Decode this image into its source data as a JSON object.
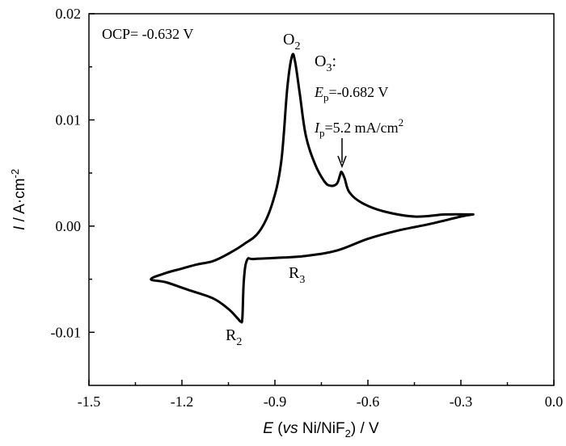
{
  "chart_data": {
    "type": "line",
    "title": "",
    "xlabel": {
      "var": "E",
      "open": " (",
      "vs": "vs",
      "ref": " Ni/NiF",
      "ref_sub": "2",
      "close": ") / V"
    },
    "ylabel": {
      "var": "I",
      "unit": " / A·cm",
      "unit_sup": "-2"
    },
    "xlim": [
      -1.5,
      0.0
    ],
    "ylim": [
      -0.015,
      0.02
    ],
    "x_ticks": [
      -1.5,
      -1.2,
      -0.9,
      -0.6,
      -0.3,
      0.0
    ],
    "x_tick_labels": [
      "-1.5",
      "-1.2",
      "-0.9",
      "-0.6",
      "-0.3",
      "0.0"
    ],
    "y_ticks": [
      -0.01,
      0.0,
      0.01,
      0.02
    ],
    "y_tick_labels": [
      "-0.01",
      "0.00",
      "0.01",
      "0.02"
    ],
    "grid": false,
    "series": [
      {
        "color": "#000000",
        "x": [
          -0.26,
          -0.35,
          -0.45,
          -0.55,
          -0.62,
          -0.66,
          -0.675,
          -0.685,
          -0.69,
          -0.7,
          -0.72,
          -0.74,
          -0.77,
          -0.8,
          -0.82,
          -0.835,
          -0.845,
          -0.86,
          -0.88,
          -0.91,
          -0.95,
          -1.0,
          -1.05,
          -1.1,
          -1.15,
          -1.2,
          -1.25,
          -1.3,
          -1.25,
          -1.18,
          -1.1,
          -1.05,
          -1.02,
          -1.01,
          -1.005,
          -1.0,
          -0.99,
          -0.97,
          -0.9,
          -0.8,
          -0.7,
          -0.6,
          -0.5,
          -0.4,
          -0.3,
          -0.26
        ],
        "y": [
          0.0011,
          0.0011,
          0.0009,
          0.0014,
          0.0022,
          0.0032,
          0.0045,
          0.0051,
          0.0048,
          0.004,
          0.0038,
          0.0042,
          0.0058,
          0.0085,
          0.0125,
          0.0155,
          0.016,
          0.013,
          0.006,
          0.002,
          -0.0005,
          -0.0017,
          -0.0026,
          -0.0033,
          -0.0036,
          -0.004,
          -0.0044,
          -0.005,
          -0.0053,
          -0.006,
          -0.0068,
          -0.0078,
          -0.0087,
          -0.009,
          -0.0086,
          -0.005,
          -0.0032,
          -0.0031,
          -0.003,
          -0.0028,
          -0.0023,
          -0.0012,
          -0.0004,
          0.0002,
          0.0009,
          0.0011
        ]
      }
    ],
    "annotations": {
      "ocp": "OCP= -0.632 V",
      "o2_letter": "O",
      "o2_sub": "2",
      "o3_letter": "O",
      "o3_sub": "3",
      "o3_colon": ":",
      "ep_var": "E",
      "ep_sub": "p",
      "ep_val": "=-0.682 V",
      "ip_var": "I",
      "ip_sub": "p",
      "ip_val": "=5.2 mA/cm",
      "ip_sup": "2",
      "r2_letter": "R",
      "r2_sub": "2",
      "r3_letter": "R",
      "r3_sub": "3"
    }
  }
}
